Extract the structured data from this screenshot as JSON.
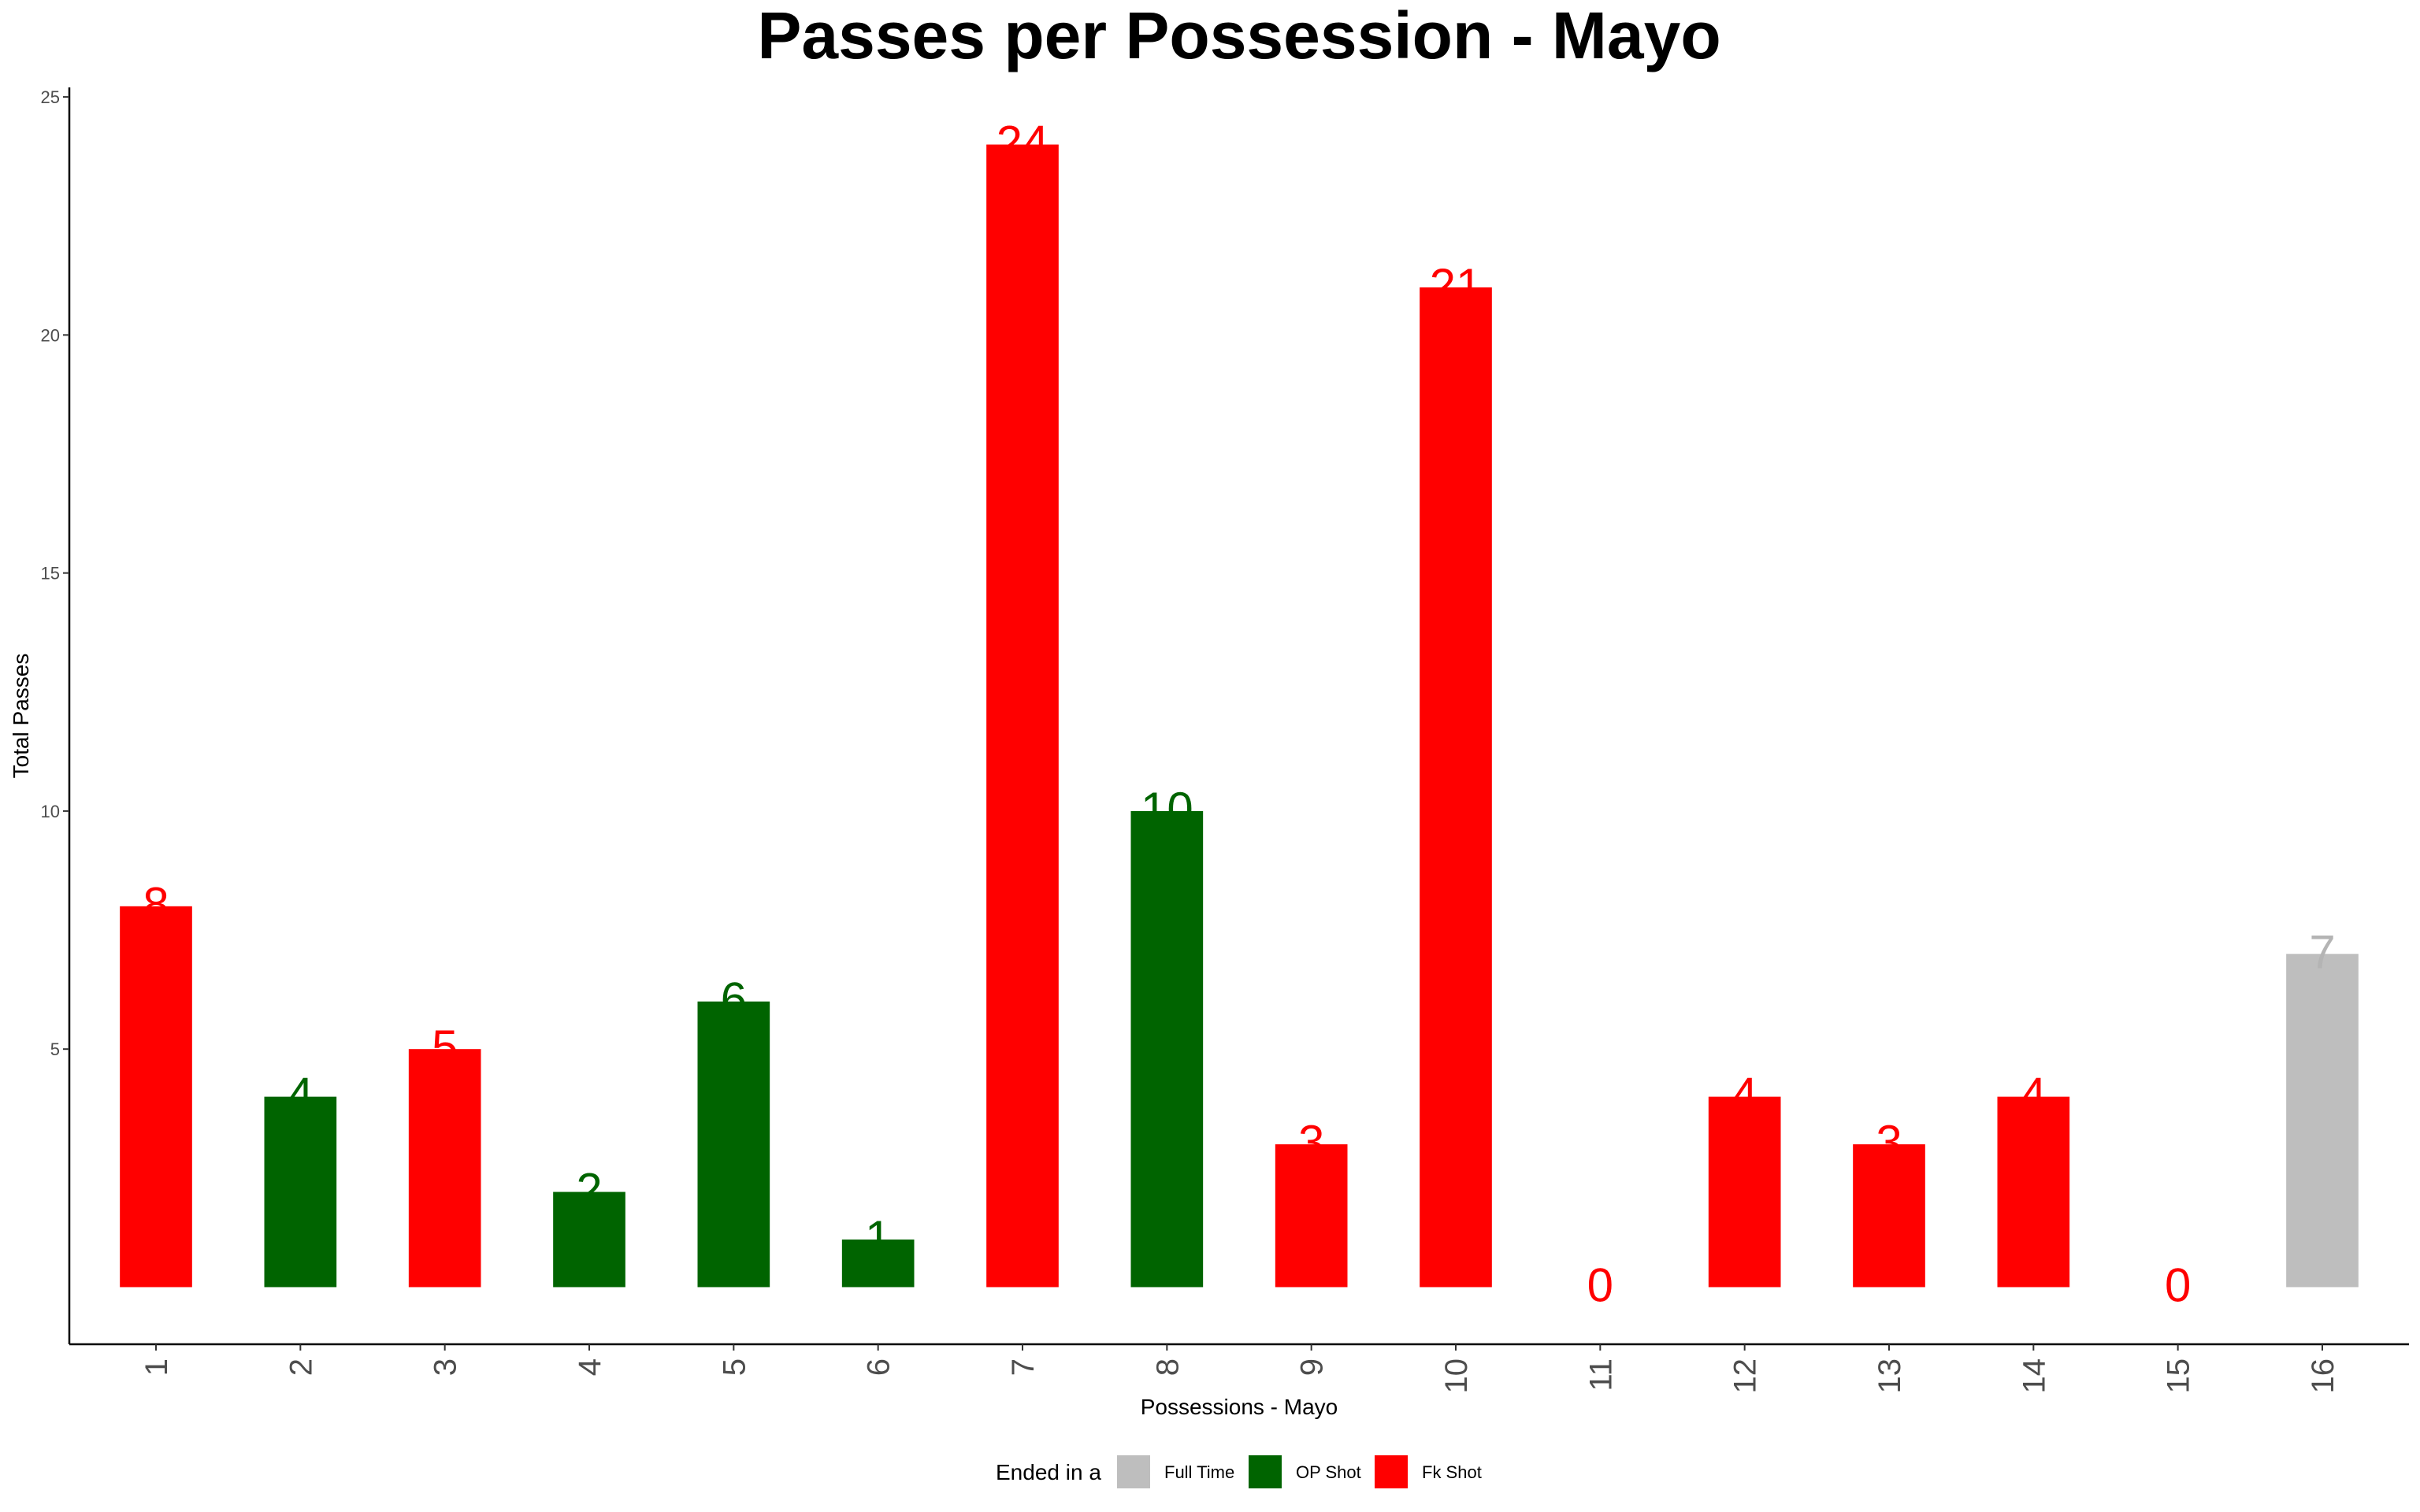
{
  "chart_data": {
    "type": "bar",
    "title": "Passes per Possession - Mayo",
    "xlabel": "Possessions - Mayo",
    "ylabel": "Total Passes",
    "ylim": [
      -1.2,
      25.2
    ],
    "yticks": [
      "5",
      "10",
      "15",
      "20",
      "25"
    ],
    "categories": [
      "1",
      "2",
      "3",
      "4",
      "5",
      "6",
      "7",
      "8",
      "9",
      "10",
      "11",
      "12",
      "13",
      "14",
      "15",
      "16"
    ],
    "values": [
      8,
      4,
      5,
      2,
      6,
      1,
      24,
      10,
      3,
      21,
      0,
      4,
      3,
      4,
      0,
      7
    ],
    "ended_in": [
      "Fk Shot",
      "OP Shot",
      "Fk Shot",
      "OP Shot",
      "OP Shot",
      "OP Shot",
      "Fk Shot",
      "OP Shot",
      "Fk Shot",
      "Fk Shot",
      "Fk Shot",
      "Fk Shot",
      "Fk Shot",
      "Fk Shot",
      "Fk Shot",
      "Full Time"
    ],
    "grid": false,
    "legend": {
      "position": "bottom",
      "title": "Ended in a",
      "items": [
        {
          "name": "Full Time",
          "color": "#bebebe"
        },
        {
          "name": "OP Shot",
          "color": "#006400"
        },
        {
          "name": "Fk Shot",
          "color": "#ff0000"
        }
      ]
    }
  }
}
